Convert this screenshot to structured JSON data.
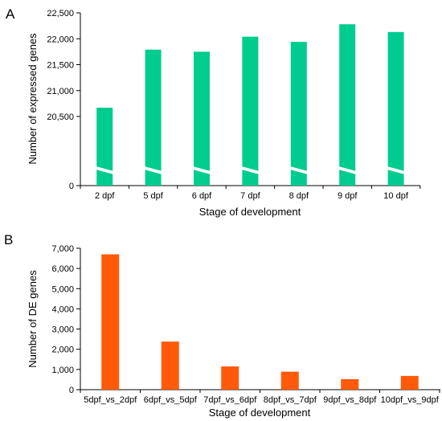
{
  "chart_data": [
    {
      "panel_label": "A",
      "type": "bar",
      "xlabel": "Stage of development",
      "ylabel": "Number of expressed genes",
      "categories": [
        "2 dpf",
        "5 dpf",
        "6 dpf",
        "7 dpf",
        "8 dpf",
        "9 dpf",
        "10 dpf"
      ],
      "values": [
        20670,
        21790,
        21750,
        22040,
        21940,
        22280,
        22130
      ],
      "yticks": [
        0,
        20500,
        21000,
        21500,
        22000,
        22500
      ],
      "ytick_labels": [
        "0",
        "20,500",
        "21,000",
        "21,500",
        "22,000",
        "22,500"
      ],
      "axis_break": true,
      "bar_color": "#00cc8f"
    },
    {
      "panel_label": "B",
      "type": "bar",
      "xlabel": "Stage of development",
      "ylabel": "Number of DE genes",
      "categories": [
        "5dpf_vs_2dpf",
        "6dpf_vs_5dpf",
        "7dpf_vs_6dpf",
        "8dpf_vs_7dpf",
        "9dpf_vs_8dpf",
        "10dpf_vs_9dpf"
      ],
      "values": [
        6700,
        2380,
        1150,
        890,
        520,
        680
      ],
      "ylim": [
        0,
        7000
      ],
      "yticks": [
        0,
        1000,
        2000,
        3000,
        4000,
        5000,
        6000,
        7000
      ],
      "ytick_labels": [
        "0",
        "1,000",
        "2,000",
        "3,000",
        "4,000",
        "5,000",
        "6,000",
        "7,000"
      ],
      "bar_color": "#ff5a0a"
    }
  ]
}
